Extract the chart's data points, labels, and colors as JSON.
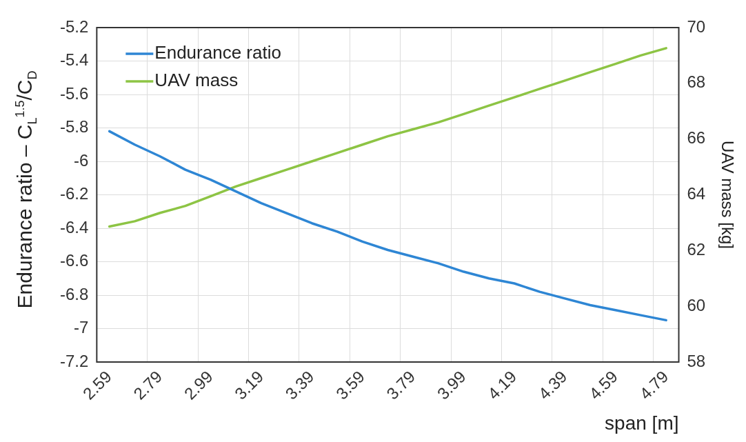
{
  "chart_data": {
    "type": "line",
    "xlabel": "span [m]",
    "ylabel": "Endurance ratio – C$_{L}$$^{1.5}$/C$_{D}$",
    "y2label": "UAV mass [kg]",
    "categories": [
      "2.59",
      null,
      "2.79",
      null,
      "2.99",
      null,
      "3.19",
      null,
      "3.39",
      null,
      "3.59",
      null,
      "3.79",
      null,
      "3.99",
      null,
      "4.19",
      null,
      "4.39",
      null,
      "4.59",
      null,
      "4.79"
    ],
    "series": [
      {
        "name": "Endurance ratio",
        "color": "#2e86d4",
        "values": [
          -5.82,
          -5.9,
          -5.97,
          -6.05,
          -6.11,
          -6.18,
          -6.25,
          -6.31,
          -6.37,
          -6.42,
          -6.48,
          -6.53,
          -6.57,
          -6.61,
          -6.66,
          -6.7,
          -6.73,
          -6.78,
          -6.82,
          -6.86,
          -6.89,
          -6.92,
          -6.95
        ]
      },
      {
        "name": "UAV mass",
        "color": "#8dc444",
        "axis": "y2",
        "values": [
          62.86,
          63.05,
          63.35,
          63.6,
          63.95,
          64.3,
          64.6,
          64.9,
          65.2,
          65.5,
          65.8,
          66.1,
          66.35,
          66.6,
          66.9,
          67.2,
          67.5,
          67.8,
          68.1,
          68.4,
          68.7,
          69.0,
          69.26
        ]
      }
    ],
    "ylim": [
      -7.2,
      -5.2
    ],
    "yticks": [
      -7.2,
      -7,
      -6.8,
      -6.6,
      -6.4,
      -6.2,
      -6,
      -5.8,
      -5.6,
      -5.4,
      -5.2
    ],
    "y2lim": [
      58,
      70
    ],
    "y2ticks": [
      58,
      60,
      62,
      64,
      66,
      68,
      70
    ],
    "grid": true,
    "legend": "top left",
    "marker": "none",
    "line_style": "solid"
  }
}
